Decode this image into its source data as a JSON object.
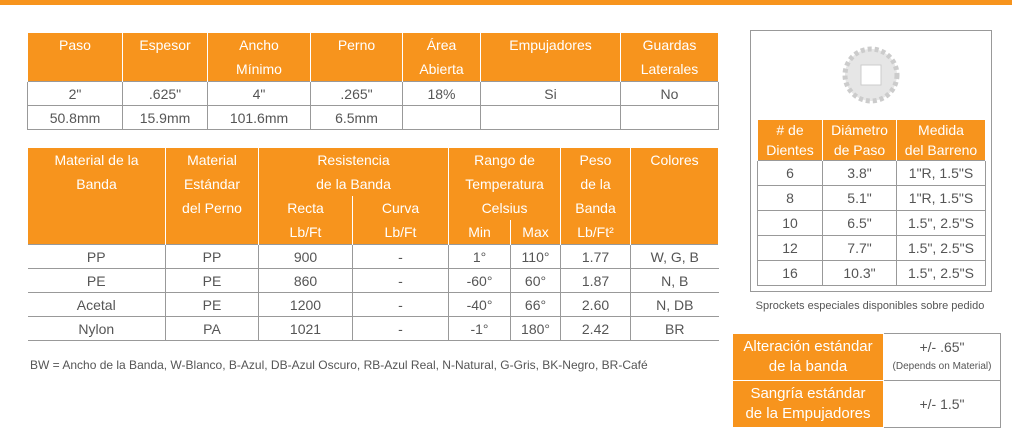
{
  "table1": {
    "header": [
      "Paso",
      "Espesor",
      [
        "Ancho",
        "Mínimo"
      ],
      "Perno",
      [
        "Área",
        "Abierta"
      ],
      "Empujadores",
      [
        "Guardas",
        "Laterales"
      ]
    ],
    "rows": [
      [
        "2\"",
        ".625\"",
        "4\"",
        ".265\"",
        "18%",
        "Si",
        "No"
      ],
      [
        "50.8mm",
        "15.9mm",
        "101.6mm",
        "6.5mm"
      ]
    ]
  },
  "table2": {
    "header": {
      "material": [
        "Material de la",
        "Banda"
      ],
      "perno": [
        "Material",
        "Estándar",
        "del Perno"
      ],
      "resistencia": [
        "Resistencia",
        "de la Banda"
      ],
      "recta": [
        "Recta",
        "Lb/Ft"
      ],
      "curva": [
        "Curva",
        "Lb/Ft"
      ],
      "rango": [
        "Rango de",
        "Temperatura"
      ],
      "celsius": "Celsius",
      "min": "Min",
      "max": "Max",
      "peso": [
        "Peso",
        "de la",
        "Banda",
        "Lb/Ft²"
      ],
      "colores": "Colores"
    },
    "rows": [
      [
        "PP",
        "PP",
        "900",
        "-",
        "1°",
        "110°",
        "1.77",
        "W, G, B"
      ],
      [
        "PE",
        "PE",
        "860",
        "-",
        "-60°",
        "60°",
        "1.87",
        "N, B"
      ],
      [
        "Acetal",
        "PE",
        "1200",
        "-",
        "-40°",
        "66°",
        "2.60",
        "N, DB"
      ],
      [
        "Nylon",
        "PA",
        "1021",
        "-",
        "-1°",
        "180°",
        "2.42",
        "BR"
      ]
    ]
  },
  "footnote": "BW = Ancho de la Banda, W-Blanco, B-Azul, DB-Azul Oscuro, RB-Azul Real, N-Natural, G-Gris, BK-Negro, BR-Café",
  "sprockets": {
    "header": [
      [
        "# de",
        "Dientes"
      ],
      [
        "Diámetro",
        "de Paso"
      ],
      [
        "Medida",
        "del Barreno"
      ]
    ],
    "rows": [
      [
        "6",
        "3.8\"",
        "1\"R, 1.5\"S"
      ],
      [
        "8",
        "5.1\"",
        "1\"R, 1.5\"S"
      ],
      [
        "10",
        "6.5\"",
        "1.5\", 2.5\"S"
      ],
      [
        "12",
        "7.7\"",
        "1.5\", 2.5\"S"
      ],
      [
        "16",
        "10.3\"",
        "1.5\", 2.5\"S"
      ]
    ],
    "caption": "Sprockets especiales disponibles sobre pedido"
  },
  "tolerances": [
    {
      "label": [
        "Alteración estándar",
        "de la banda"
      ],
      "value": "+/- .65\"",
      "note": "(Depends on Material)"
    },
    {
      "label": [
        "Sangría estándar",
        "de la Empujadores"
      ],
      "value": "+/- 1.5\""
    }
  ]
}
